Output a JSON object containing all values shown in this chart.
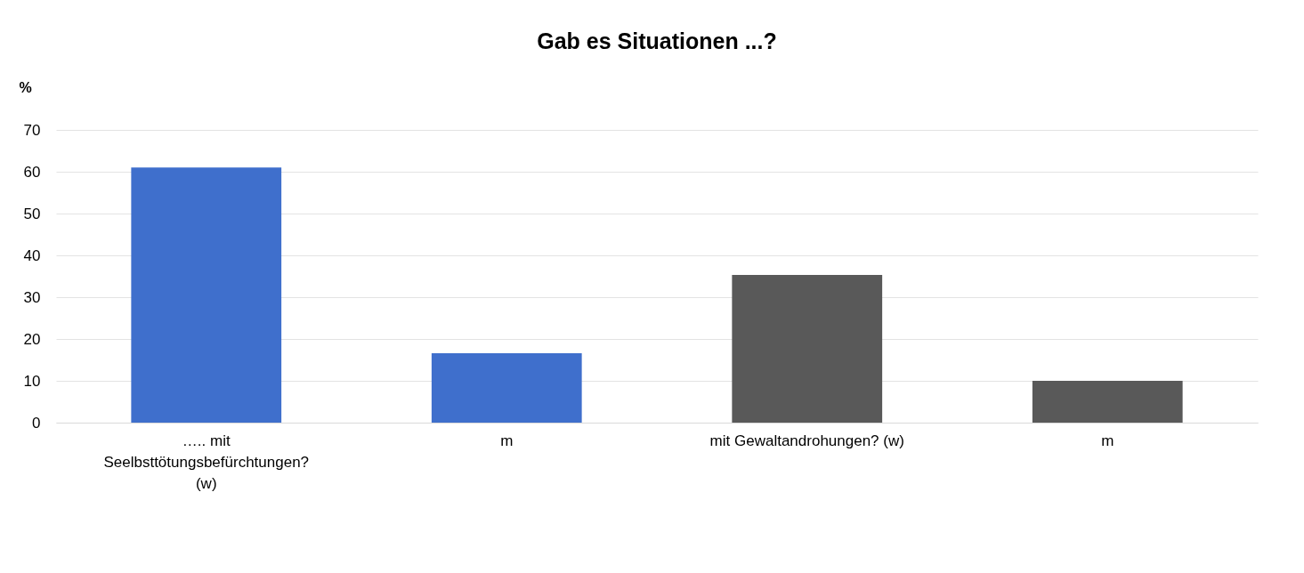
{
  "chart_data": {
    "type": "bar",
    "title": "Gab es Situationen ...?",
    "ylabel": "%",
    "categories": [
      "….. mit Seelbsttötungsbefürchtungen? (w)",
      "m",
      "mit Gewaltandrohungen? (w)",
      "m"
    ],
    "values": [
      61,
      16.6,
      35.3,
      10
    ],
    "colors": [
      "#3f6fcc",
      "#3f6fcc",
      "#595959",
      "#595959"
    ],
    "ylim": [
      0,
      70
    ],
    "yticks": [
      0,
      10,
      20,
      30,
      40,
      50,
      60,
      70
    ],
    "grid": "y",
    "legend": false
  }
}
